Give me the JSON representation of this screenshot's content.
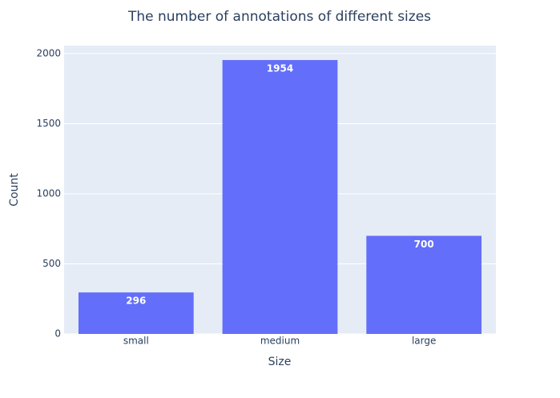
{
  "chart_data": {
    "type": "bar",
    "title": "The number of annotations of different sizes",
    "x_label": "Size",
    "y_label": "Count",
    "categories": [
      "small",
      "medium",
      "large"
    ],
    "values": [
      296,
      1954,
      700
    ],
    "color": "#636efa",
    "ylim": [
      0,
      2056.8
    ],
    "yticks": [
      0,
      500,
      1000,
      1500,
      2000
    ],
    "grid": true,
    "show_value_labels": true
  }
}
